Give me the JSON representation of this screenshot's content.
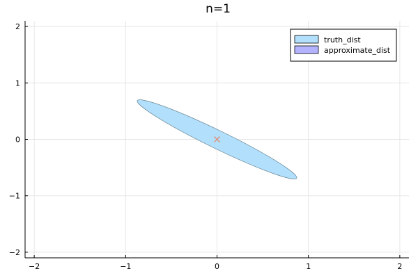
{
  "chart_data": {
    "type": "scatter",
    "title": "n=1",
    "xlabel": "",
    "ylabel": "",
    "xlim": [
      -2.1,
      2.1
    ],
    "ylim": [
      -2.1,
      2.1
    ],
    "xticks": [
      -2,
      -1,
      0,
      1,
      2
    ],
    "yticks": [
      -2,
      -1,
      0,
      1,
      2
    ],
    "xtick_labels": [
      "−2",
      "−1",
      "0",
      "1",
      "2"
    ],
    "ytick_labels": [
      "−2",
      "−1",
      "0",
      "1",
      "2"
    ],
    "grid": true,
    "legend_position": "top-right",
    "series": [
      {
        "name": "truth_dist",
        "kind": "ellipse",
        "color": "#b2e0fc",
        "edge_color": "#6e8a99",
        "center": [
          0,
          0
        ],
        "semi_major": 0.97,
        "semi_minor": 0.16,
        "angle_deg": -26
      },
      {
        "name": "approximate_dist",
        "kind": "ellipse",
        "color": "#b3b3ff",
        "edge_color": "#000000",
        "center": [
          0,
          0
        ],
        "semi_major": 0,
        "semi_minor": 0,
        "angle_deg": 0
      }
    ],
    "markers": [
      {
        "x": 0,
        "y": 0,
        "symbol": "x",
        "color": "#e0907a"
      }
    ]
  }
}
